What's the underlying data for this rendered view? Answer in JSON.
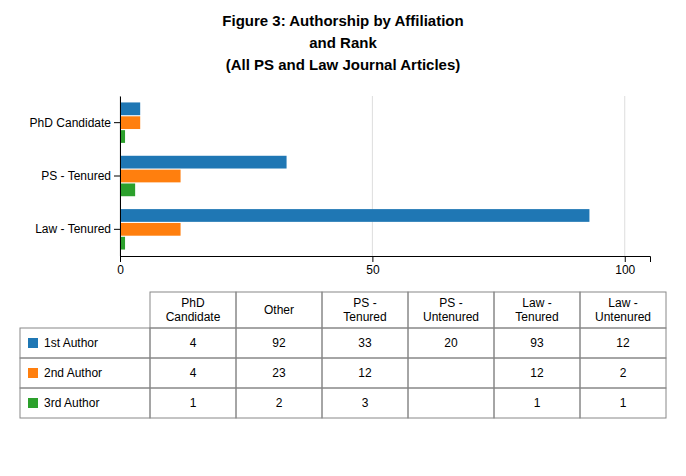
{
  "chart_data": {
    "type": "bar",
    "orientation": "horizontal",
    "title": "Figure 3: Authorship by Affiliation\nand Rank\n(All PS and Law Journal Articles)",
    "categories": [
      "Law - Tenured",
      "PS - Tenured",
      "PhD Candidate"
    ],
    "series": [
      {
        "name": "1st Author",
        "values": [
          93,
          33,
          4
        ]
      },
      {
        "name": "2nd Author",
        "values": [
          12,
          12,
          4
        ]
      },
      {
        "name": "3rd Author",
        "values": [
          1,
          3,
          1
        ]
      }
    ],
    "xlim": [
      0,
      105
    ],
    "xticks": [
      0,
      50,
      100
    ],
    "grid": true,
    "table": {
      "columns": [
        "PhD\nCandidate",
        "Other",
        "PS -\nTenured",
        "PS -\nUntenured",
        "Law -\nTenured",
        "Law -\nUntenured"
      ],
      "cells": [
        [
          4,
          92,
          33,
          20,
          93,
          12
        ],
        [
          4,
          23,
          12,
          null,
          12,
          2
        ],
        [
          1,
          2,
          3,
          null,
          1,
          1
        ]
      ]
    }
  }
}
